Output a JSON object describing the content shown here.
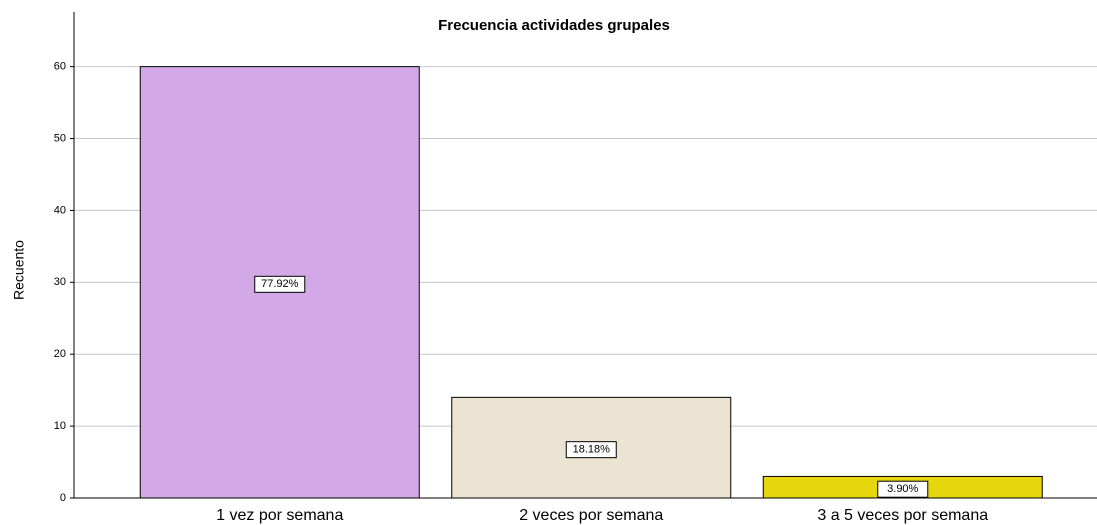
{
  "chart_data": {
    "type": "bar",
    "title": "Frecuencia actividades grupales",
    "y_label": "Recuento",
    "categories": [
      "1 vez por semana",
      "2 veces por semana",
      "3 a 5 veces por semana"
    ],
    "values": [
      60,
      14,
      3
    ],
    "data_labels": [
      "77.92%",
      "18.18%",
      "3.90%"
    ],
    "colors": [
      "#d2a9e6",
      "#ebe4d2",
      "#e5d60e"
    ],
    "ylim": [
      0,
      67.6
    ],
    "yticks": [
      0,
      10,
      20,
      30,
      40,
      50,
      60
    ],
    "grid": true
  }
}
